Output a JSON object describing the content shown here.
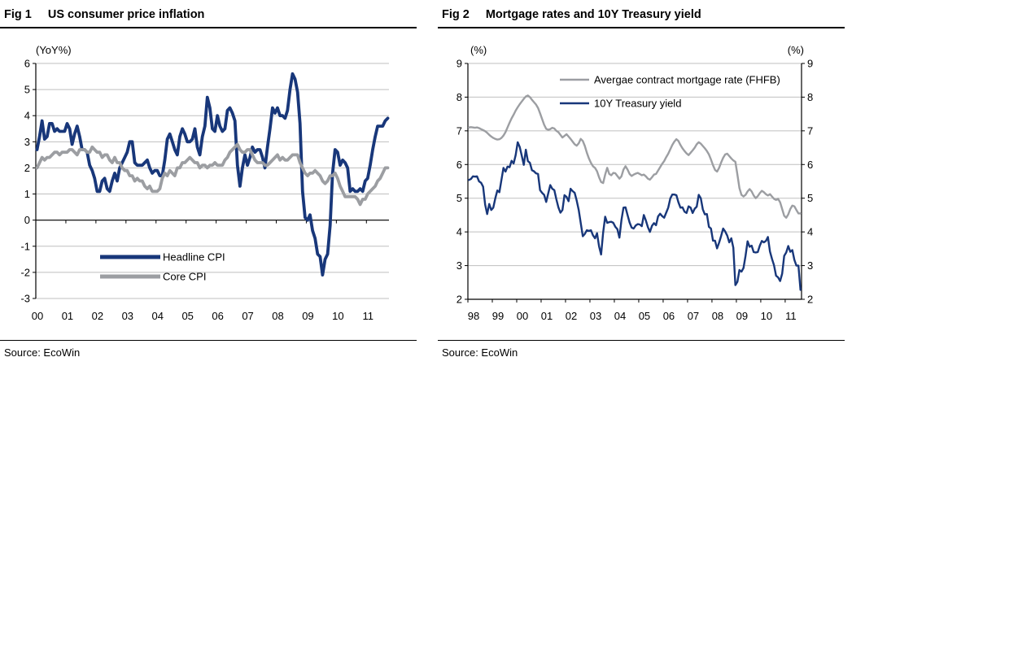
{
  "figures": [
    {
      "title_prefix": "Fig 1",
      "title": "US consumer price inflation",
      "source": "Source: EcoWin"
    },
    {
      "title_prefix": "Fig 2",
      "title": "Mortgage rates and 10Y Treasury yield",
      "source": "Source: EcoWin"
    }
  ],
  "colors": {
    "navy": "#18377a",
    "gray": "#9c9ea2",
    "gridline": "#bfbfbf",
    "axis": "#000000"
  },
  "chart_data": [
    {
      "type": "line",
      "title": "US consumer price inflation",
      "unit_left": "(YoY%)",
      "ylim": [
        -3,
        6
      ],
      "yticks": [
        6,
        5,
        4,
        3,
        2,
        1,
        0,
        -1,
        -2,
        -3
      ],
      "xlim": [
        2000,
        2011.75
      ],
      "xtick_labels": [
        "00",
        "01",
        "02",
        "03",
        "04",
        "05",
        "06",
        "07",
        "08",
        "09",
        "10",
        "11"
      ],
      "grid": true,
      "zero_axis": true,
      "legend_position": "inside-bottom-left",
      "x_start_year": 2000,
      "x_step_months": 1,
      "series": [
        {
          "name": "Headline CPI",
          "color": "#18377a",
          "width": 3.8,
          "values": [
            2.7,
            3.2,
            3.8,
            3.1,
            3.2,
            3.7,
            3.7,
            3.4,
            3.5,
            3.4,
            3.4,
            3.4,
            3.7,
            3.5,
            2.9,
            3.3,
            3.6,
            3.2,
            2.7,
            2.7,
            2.6,
            2.1,
            1.9,
            1.6,
            1.1,
            1.1,
            1.5,
            1.6,
            1.2,
            1.1,
            1.5,
            1.8,
            1.5,
            2.0,
            2.2,
            2.4,
            2.6,
            3.0,
            3.0,
            2.2,
            2.1,
            2.1,
            2.1,
            2.2,
            2.3,
            2.0,
            1.8,
            1.9,
            1.9,
            1.7,
            1.7,
            2.3,
            3.1,
            3.3,
            3.0,
            2.7,
            2.5,
            3.2,
            3.5,
            3.3,
            3.0,
            3.0,
            3.1,
            3.5,
            2.8,
            2.5,
            3.2,
            3.6,
            4.7,
            4.3,
            3.5,
            3.4,
            4.0,
            3.6,
            3.4,
            3.5,
            4.2,
            4.3,
            4.1,
            3.8,
            2.1,
            1.3,
            2.0,
            2.5,
            2.1,
            2.4,
            2.8,
            2.6,
            2.7,
            2.7,
            2.4,
            2.0,
            2.8,
            3.5,
            4.3,
            4.1,
            4.3,
            4.0,
            4.0,
            3.9,
            4.2,
            5.0,
            5.6,
            5.4,
            4.9,
            3.7,
            1.1,
            0.1,
            0.0,
            0.2,
            -0.4,
            -0.7,
            -1.3,
            -1.4,
            -2.1,
            -1.5,
            -1.3,
            -0.2,
            1.8,
            2.7,
            2.6,
            2.1,
            2.3,
            2.2,
            2.0,
            1.1,
            1.2,
            1.1,
            1.1,
            1.2,
            1.1,
            1.5,
            1.6,
            2.1,
            2.7,
            3.2,
            3.6,
            3.6,
            3.6,
            3.8,
            3.9
          ]
        },
        {
          "name": "Core CPI",
          "color": "#9c9ea2",
          "width": 3.8,
          "values": [
            2.0,
            2.2,
            2.4,
            2.3,
            2.4,
            2.4,
            2.5,
            2.6,
            2.6,
            2.5,
            2.6,
            2.6,
            2.6,
            2.7,
            2.7,
            2.6,
            2.5,
            2.7,
            2.7,
            2.7,
            2.6,
            2.6,
            2.8,
            2.7,
            2.6,
            2.6,
            2.4,
            2.5,
            2.5,
            2.3,
            2.2,
            2.4,
            2.2,
            2.2,
            2.0,
            1.9,
            1.9,
            1.7,
            1.7,
            1.5,
            1.6,
            1.5,
            1.5,
            1.3,
            1.2,
            1.3,
            1.1,
            1.1,
            1.1,
            1.2,
            1.6,
            1.8,
            1.7,
            1.9,
            1.8,
            1.7,
            2.0,
            2.0,
            2.2,
            2.2,
            2.3,
            2.4,
            2.3,
            2.2,
            2.2,
            2.0,
            2.1,
            2.1,
            2.0,
            2.1,
            2.1,
            2.2,
            2.1,
            2.1,
            2.1,
            2.3,
            2.4,
            2.6,
            2.7,
            2.8,
            2.9,
            2.7,
            2.6,
            2.6,
            2.7,
            2.7,
            2.5,
            2.3,
            2.2,
            2.2,
            2.2,
            2.1,
            2.1,
            2.2,
            2.3,
            2.4,
            2.5,
            2.3,
            2.4,
            2.3,
            2.3,
            2.4,
            2.5,
            2.5,
            2.5,
            2.2,
            2.0,
            1.8,
            1.7,
            1.8,
            1.8,
            1.9,
            1.8,
            1.7,
            1.5,
            1.4,
            1.5,
            1.7,
            1.7,
            1.8,
            1.6,
            1.3,
            1.1,
            0.9,
            0.9,
            0.9,
            0.9,
            0.9,
            0.8,
            0.6,
            0.8,
            0.8,
            1.0,
            1.1,
            1.2,
            1.3,
            1.5,
            1.6,
            1.8,
            2.0,
            2.0
          ]
        }
      ]
    },
    {
      "type": "line",
      "title": "Mortgage rates and 10Y Treasury yield",
      "unit_left": "(%)",
      "unit_right": "(%)",
      "ylim": [
        2,
        9
      ],
      "yticks": [
        9,
        8,
        7,
        6,
        5,
        4,
        3,
        2
      ],
      "xlim": [
        1998,
        2011.67
      ],
      "xtick_labels": [
        "98",
        "99",
        "00",
        "01",
        "02",
        "03",
        "04",
        "05",
        "06",
        "07",
        "08",
        "09",
        "10",
        "11"
      ],
      "grid": true,
      "zero_axis": false,
      "legend_position": "inside-top-center",
      "x_start_year": 1998,
      "x_step_months": 1,
      "series": [
        {
          "name": "Avergae contract mortgage rate (FHFB)",
          "color": "#9c9ea2",
          "width": 2.4,
          "values": [
            7.1,
            7.11,
            7.1,
            7.09,
            7.1,
            7.08,
            7.05,
            7.02,
            6.99,
            6.94,
            6.88,
            6.83,
            6.79,
            6.76,
            6.74,
            6.75,
            6.79,
            6.86,
            6.96,
            7.1,
            7.24,
            7.37,
            7.48,
            7.6,
            7.7,
            7.79,
            7.87,
            7.95,
            8.02,
            8.05,
            8.0,
            7.92,
            7.85,
            7.78,
            7.68,
            7.52,
            7.35,
            7.18,
            7.06,
            7.03,
            7.05,
            7.09,
            7.07,
            7.0,
            6.96,
            6.88,
            6.8,
            6.85,
            6.9,
            6.83,
            6.76,
            6.68,
            6.6,
            6.56,
            6.63,
            6.76,
            6.7,
            6.55,
            6.35,
            6.18,
            6.05,
            5.95,
            5.9,
            5.8,
            5.62,
            5.48,
            5.45,
            5.7,
            5.9,
            5.72,
            5.68,
            5.75,
            5.74,
            5.66,
            5.58,
            5.65,
            5.85,
            5.95,
            5.85,
            5.72,
            5.66,
            5.7,
            5.73,
            5.75,
            5.72,
            5.68,
            5.7,
            5.65,
            5.58,
            5.55,
            5.62,
            5.7,
            5.72,
            5.82,
            5.92,
            6.02,
            6.1,
            6.22,
            6.32,
            6.45,
            6.58,
            6.68,
            6.75,
            6.7,
            6.58,
            6.48,
            6.4,
            6.33,
            6.28,
            6.35,
            6.42,
            6.5,
            6.6,
            6.66,
            6.62,
            6.55,
            6.48,
            6.4,
            6.3,
            6.15,
            5.98,
            5.84,
            5.79,
            5.9,
            6.06,
            6.2,
            6.3,
            6.32,
            6.25,
            6.18,
            6.12,
            6.08,
            5.7,
            5.3,
            5.1,
            5.05,
            5.1,
            5.2,
            5.27,
            5.2,
            5.08,
            5.0,
            5.06,
            5.15,
            5.22,
            5.18,
            5.12,
            5.08,
            5.12,
            5.05,
            4.98,
            4.95,
            4.98,
            4.88,
            4.68,
            4.48,
            4.42,
            4.52,
            4.68,
            4.78,
            4.76,
            4.65,
            4.55,
            4.55
          ]
        },
        {
          "name": "10Y Treasury yield",
          "color": "#18377a",
          "width": 2.4,
          "values": [
            5.54,
            5.57,
            5.65,
            5.64,
            5.65,
            5.5,
            5.46,
            5.34,
            4.81,
            4.53,
            4.83,
            4.65,
            4.72,
            5.0,
            5.23,
            5.18,
            5.54,
            5.9,
            5.79,
            5.94,
            5.92,
            6.11,
            6.03,
            6.28,
            6.66,
            6.52,
            6.26,
            5.99,
            6.44,
            6.1,
            6.05,
            5.83,
            5.8,
            5.74,
            5.72,
            5.24,
            5.16,
            5.1,
            4.89,
            5.14,
            5.39,
            5.28,
            5.24,
            4.97,
            4.73,
            4.57,
            4.65,
            5.09,
            5.04,
            4.91,
            5.28,
            5.21,
            5.16,
            4.93,
            4.65,
            4.26,
            3.87,
            3.94,
            4.05,
            4.03,
            4.05,
            3.9,
            3.81,
            3.96,
            3.57,
            3.33,
            3.98,
            4.45,
            4.27,
            4.29,
            4.3,
            4.27,
            4.15,
            4.08,
            3.83,
            4.35,
            4.72,
            4.73,
            4.5,
            4.28,
            4.13,
            4.1,
            4.19,
            4.23,
            4.22,
            4.17,
            4.5,
            4.34,
            4.14,
            4.0,
            4.18,
            4.26,
            4.2,
            4.46,
            4.54,
            4.47,
            4.42,
            4.57,
            4.72,
            4.99,
            5.11,
            5.11,
            5.09,
            4.88,
            4.72,
            4.73,
            4.6,
            4.56,
            4.76,
            4.72,
            4.56,
            4.69,
            4.75,
            5.1,
            5.0,
            4.67,
            4.52,
            4.53,
            4.15,
            4.1,
            3.74,
            3.74,
            3.51,
            3.68,
            3.88,
            4.1,
            4.01,
            3.89,
            3.69,
            3.81,
            3.53,
            2.42,
            2.52,
            2.87,
            2.82,
            2.93,
            3.29,
            3.72,
            3.56,
            3.59,
            3.4,
            3.39,
            3.4,
            3.59,
            3.73,
            3.69,
            3.73,
            3.85,
            3.42,
            3.2,
            3.01,
            2.7,
            2.65,
            2.54,
            2.76,
            3.29,
            3.39,
            3.58,
            3.41,
            3.46,
            3.17,
            3.0,
            3.0,
            2.28
          ]
        }
      ]
    }
  ]
}
